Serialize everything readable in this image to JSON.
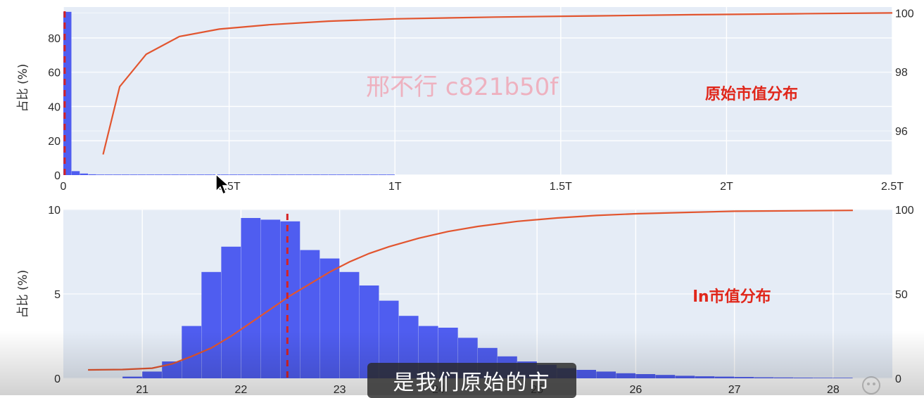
{
  "watermark": "邢不行 c821b50f",
  "subtitle": "是我们原始的市",
  "colors": {
    "plot_bg": "#e5ecf6",
    "bar": "#4f5df0",
    "cdf_line": "#e2552f",
    "median_line": "#d62222",
    "annotation": "#e0271b"
  },
  "icons": [
    "mouse-cursor-icon",
    "share-icon"
  ],
  "chart_data": [
    {
      "type": "bar",
      "annotation": "原始市值分布",
      "ylabel": "占比 (%)",
      "y2label": "",
      "xlim": [
        0,
        2.5
      ],
      "ylim": [
        0,
        98
      ],
      "y2lim": [
        94.5,
        100.2
      ],
      "x_ticks": [
        {
          "v": 0,
          "label": "0"
        },
        {
          "v": 0.5,
          "label": "0.5T"
        },
        {
          "v": 1,
          "label": "1T"
        },
        {
          "v": 1.5,
          "label": "1.5T"
        },
        {
          "v": 2,
          "label": "2T"
        },
        {
          "v": 2.5,
          "label": "2.5T"
        }
      ],
      "y_ticks": [
        0,
        20,
        40,
        60,
        80
      ],
      "y2_ticks": [
        96,
        98,
        100
      ],
      "bins": {
        "start": 0,
        "width": 0.025,
        "values": [
          95.2,
          2.3,
          0.9,
          0.45,
          0.25,
          0.15,
          0.1,
          0.08,
          0.06,
          0.05,
          0.04,
          0.04,
          0.03,
          0.03,
          0.02,
          0.02,
          0.02,
          0.02,
          0.01,
          0.01,
          0.01,
          0.01,
          0.01,
          0.01,
          0.01,
          0.01,
          0.01,
          0.01,
          0.01,
          0.01,
          0.01,
          0.01,
          0.01,
          0.01,
          0.01,
          0.01,
          0.01,
          0.01,
          0.01,
          0.01
        ]
      },
      "cdf": {
        "x": [
          0.12,
          0.17,
          0.25,
          0.35,
          0.47,
          0.62,
          0.8,
          1.0,
          1.3,
          1.6,
          1.9,
          2.2,
          2.5
        ],
        "y": [
          95.2,
          97.5,
          98.6,
          99.2,
          99.45,
          99.6,
          99.72,
          99.8,
          99.86,
          99.9,
          99.94,
          99.97,
          100
        ]
      },
      "median_x": 0.004
    },
    {
      "type": "bar",
      "annotation": "ln市值分布",
      "ylabel": "占比 (%)",
      "y2label": "",
      "xlim": [
        20.2,
        28.6
      ],
      "ylim": [
        0,
        10
      ],
      "y2lim": [
        0,
        100
      ],
      "x_ticks": [
        {
          "v": 21,
          "label": "21"
        },
        {
          "v": 22,
          "label": "22"
        },
        {
          "v": 23,
          "label": "23"
        },
        {
          "v": 24,
          "label": "24"
        },
        {
          "v": 25,
          "label": "25"
        },
        {
          "v": 26,
          "label": "26"
        },
        {
          "v": 27,
          "label": "27"
        },
        {
          "v": 28,
          "label": "28"
        }
      ],
      "y_ticks": [
        0,
        5,
        10
      ],
      "y2_ticks": [
        0,
        50,
        100
      ],
      "bins": {
        "start": 20.8,
        "width": 0.2,
        "values": [
          0.1,
          0.4,
          1.0,
          3.1,
          6.3,
          7.8,
          9.5,
          9.4,
          9.3,
          7.6,
          7.1,
          6.3,
          5.5,
          4.6,
          3.7,
          3.1,
          3.0,
          2.4,
          1.8,
          1.3,
          1.0,
          0.8,
          0.6,
          0.5,
          0.4,
          0.3,
          0.25,
          0.2,
          0.15,
          0.12,
          0.1,
          0.08,
          0.06,
          0.05,
          0.04,
          0.03,
          0.02
        ]
      },
      "cdf": {
        "x": [
          20.45,
          20.8,
          21.1,
          21.3,
          21.5,
          21.7,
          21.9,
          22.1,
          22.3,
          22.5,
          22.7,
          22.9,
          23.1,
          23.3,
          23.5,
          23.8,
          24.1,
          24.4,
          24.8,
          25.2,
          25.6,
          26.0,
          26.5,
          27.0,
          28.2
        ],
        "y": [
          5,
          5.2,
          6,
          8.5,
          13,
          18,
          25,
          33,
          41,
          49,
          56,
          63,
          69,
          74,
          78,
          83,
          87,
          90,
          93,
          95,
          96.5,
          97.5,
          98.3,
          99,
          99.5
        ]
      },
      "median_x": 22.47
    }
  ]
}
